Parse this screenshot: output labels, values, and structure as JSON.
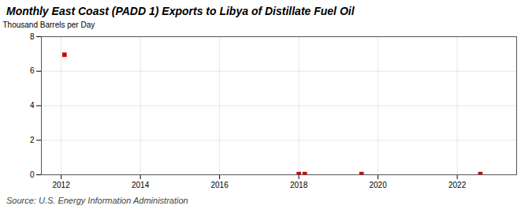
{
  "chart_data": {
    "type": "scatter",
    "title": "Monthly East Coast (PADD 1) Exports to Libya of Distillate Fuel Oil",
    "ylabel": "Thousand Barrels per Day",
    "source": "Source: U.S. Energy Information Administration",
    "x": [
      2012.083,
      2018.0,
      2018.15,
      2019.583,
      2022.583
    ],
    "values": [
      6.956,
      0.04,
      0.04,
      0.04,
      0.04
    ],
    "color": "#cc0000",
    "marker": "square",
    "xlim": [
      2011.5,
      2023.5
    ],
    "xticks": [
      2012,
      2014,
      2016,
      2018,
      2020,
      2022
    ],
    "ylim": [
      0,
      8
    ],
    "yticks": [
      0,
      2,
      4,
      6,
      8
    ],
    "grid": true
  }
}
